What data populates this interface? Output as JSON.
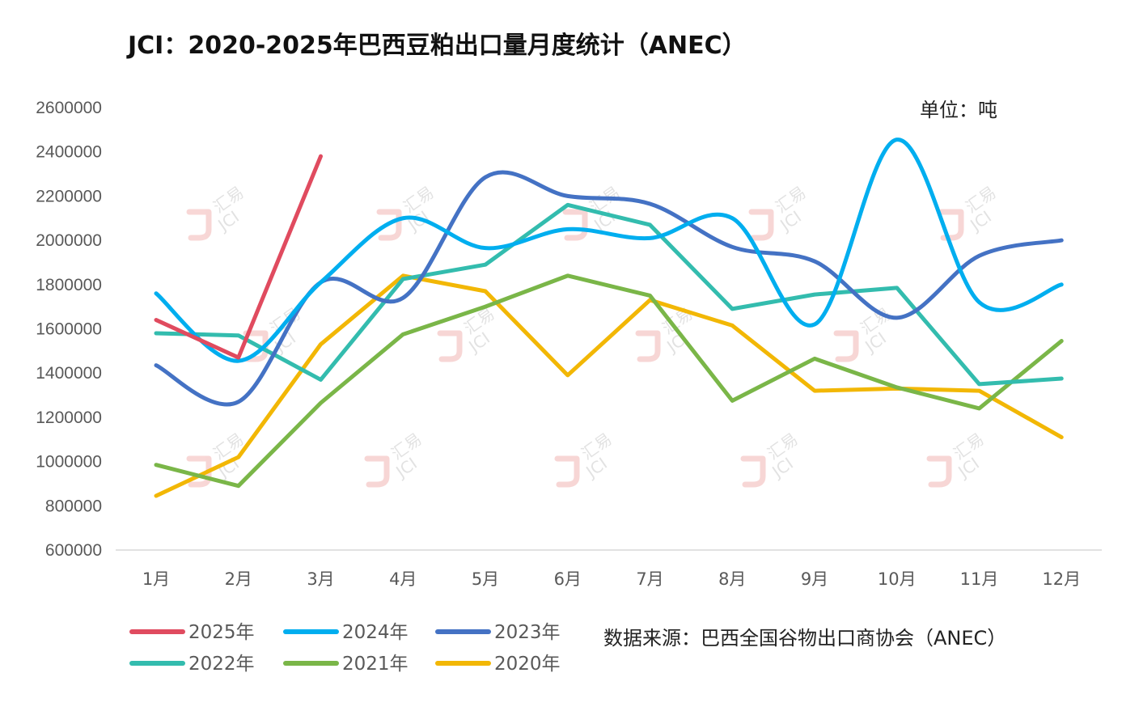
{
  "chart_data": {
    "type": "line",
    "title": "JCI：2020-2025年巴西豆粕出口量月度统计（ANEC）",
    "unit_label": "单位：吨",
    "source_label": "数据来源：巴西全国谷物出口商协会（ANEC）",
    "categories": [
      "1月",
      "2月",
      "3月",
      "4月",
      "5月",
      "6月",
      "7月",
      "8月",
      "9月",
      "10月",
      "11月",
      "12月"
    ],
    "ylim": [
      600000,
      2600000
    ],
    "yticks": [
      600000,
      800000,
      1000000,
      1200000,
      1400000,
      1600000,
      1800000,
      2000000,
      2200000,
      2400000,
      2600000
    ],
    "grid": false,
    "legend_position": "bottom-left",
    "series": [
      {
        "name": "2025年",
        "color": "#e04b5f",
        "smooth": false,
        "values": [
          1640000,
          1470000,
          2380000,
          null,
          null,
          null,
          null,
          null,
          null,
          null,
          null,
          null
        ]
      },
      {
        "name": "2024年",
        "color": "#00aeef",
        "smooth": true,
        "values": [
          1760000,
          1455000,
          1810000,
          2100000,
          1965000,
          2050000,
          2010000,
          2100000,
          1620000,
          2455000,
          1720000,
          1800000
        ]
      },
      {
        "name": "2023年",
        "color": "#4472c4",
        "smooth": true,
        "values": [
          1435000,
          1270000,
          1810000,
          1740000,
          2285000,
          2200000,
          2165000,
          1970000,
          1905000,
          1650000,
          1930000,
          2000000
        ]
      },
      {
        "name": "2022年",
        "color": "#33bcae",
        "smooth": false,
        "values": [
          1580000,
          1570000,
          1370000,
          1825000,
          1890000,
          2160000,
          2070000,
          1690000,
          1755000,
          1785000,
          1350000,
          1375000
        ]
      },
      {
        "name": "2021年",
        "color": "#7ab648",
        "smooth": false,
        "values": [
          985000,
          890000,
          1265000,
          1575000,
          1700000,
          1840000,
          1750000,
          1275000,
          1465000,
          1335000,
          1240000,
          1545000
        ]
      },
      {
        "name": "2020年",
        "color": "#f2b705",
        "smooth": false,
        "values": [
          845000,
          1020000,
          1530000,
          1840000,
          1770000,
          1390000,
          1730000,
          1615000,
          1320000,
          1330000,
          1320000,
          1110000
        ]
      }
    ]
  },
  "watermark": {
    "brand_cn": "汇易",
    "brand_en": "JCI"
  }
}
